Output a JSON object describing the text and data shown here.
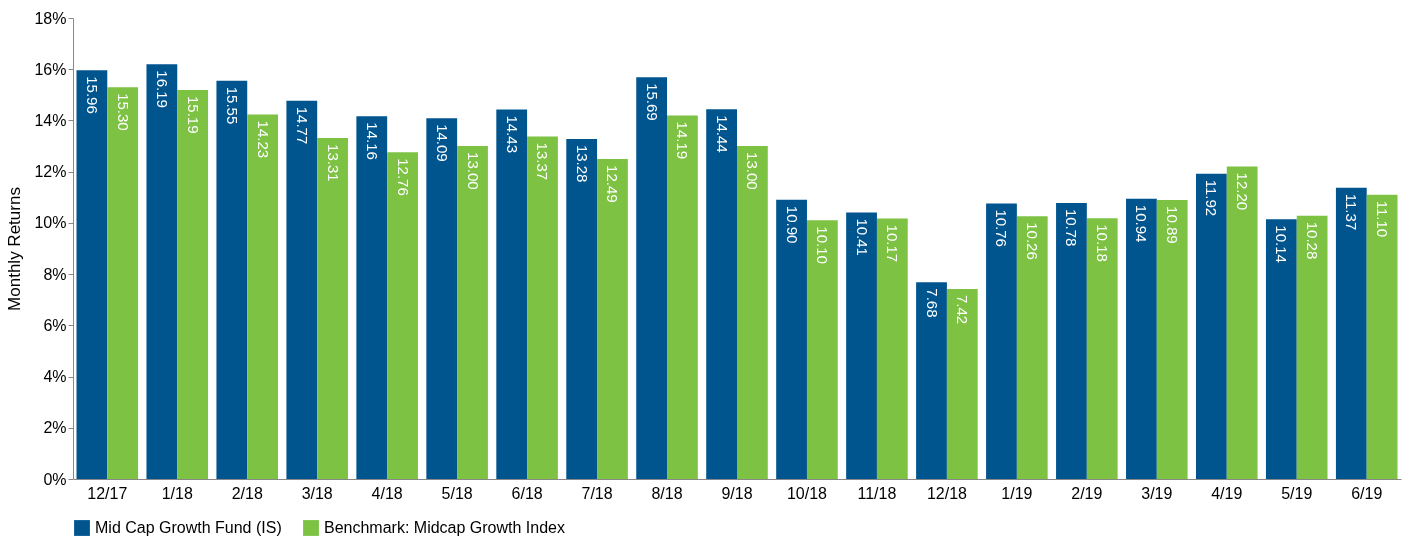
{
  "chart_data": {
    "type": "bar",
    "ylabel": "Monthly Returns",
    "categories": [
      "12/17",
      "1/18",
      "2/18",
      "3/18",
      "4/18",
      "5/18",
      "6/18",
      "7/18",
      "8/18",
      "9/18",
      "10/18",
      "11/18",
      "12/18",
      "1/19",
      "2/19",
      "3/19",
      "4/19",
      "5/19",
      "6/19"
    ],
    "series": [
      {
        "name": "Mid Cap Growth Fund (IS)",
        "color": "#00558f",
        "values": [
          15.96,
          16.19,
          15.55,
          14.77,
          14.16,
          14.09,
          14.43,
          13.28,
          15.69,
          14.44,
          10.9,
          10.41,
          7.68,
          10.76,
          10.78,
          10.94,
          11.92,
          10.14,
          11.37
        ],
        "value_labels": [
          "15.96",
          "16.19",
          "15.55",
          "14.77",
          "14.16",
          "14.09",
          "14.43",
          "13.28",
          "15.69",
          "14.44",
          "10.90",
          "10.41",
          "7.68",
          "10.76",
          "10.78",
          "10.94",
          "11.92",
          "10.14",
          "11.37"
        ]
      },
      {
        "name": "Benchmark: Midcap Growth Index",
        "color": "#7dc242",
        "values": [
          15.3,
          15.19,
          14.23,
          13.31,
          12.76,
          13.0,
          13.37,
          12.49,
          14.19,
          13.0,
          10.1,
          10.17,
          7.42,
          10.26,
          10.18,
          10.89,
          12.2,
          10.28,
          11.1
        ],
        "value_labels": [
          "15.30",
          "15.19",
          "14.23",
          "13.31",
          "12.76",
          "13.00",
          "13.37",
          "12.49",
          "14.19",
          "13.00",
          "10.10",
          "10.17",
          "7.42",
          "10.26",
          "10.18",
          "10.89",
          "12.20",
          "10.28",
          "11.10"
        ]
      }
    ],
    "ylim": [
      0,
      18
    ],
    "yticks": [
      {
        "value": 0,
        "label": "0%"
      },
      {
        "value": 2,
        "label": "2%"
      },
      {
        "value": 4,
        "label": "4%"
      },
      {
        "value": 6,
        "label": "6%"
      },
      {
        "value": 8,
        "label": "8%"
      },
      {
        "value": 10,
        "label": "10%"
      },
      {
        "value": 12,
        "label": "12%"
      },
      {
        "value": 14,
        "label": "14%"
      },
      {
        "value": 16,
        "label": "16%"
      },
      {
        "value": 18,
        "label": "18%"
      }
    ],
    "grid": false,
    "legend": "bottom left"
  }
}
